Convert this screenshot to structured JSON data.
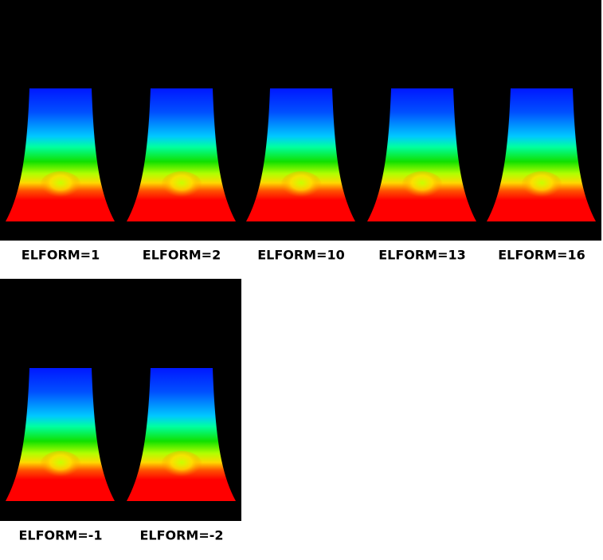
{
  "rows": [
    {
      "labels": [
        "ELFORM=1",
        "ELFORM=2",
        "ELFORM=10",
        "ELFORM=13",
        "ELFORM=16"
      ]
    },
    {
      "labels": [
        "ELFORM=-1",
        "ELFORM=-2"
      ]
    }
  ]
}
